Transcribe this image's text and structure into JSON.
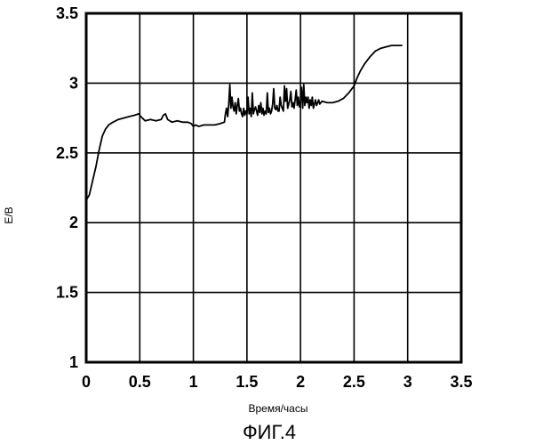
{
  "chart_data": {
    "type": "line",
    "xlabel": "Время/часы",
    "ylabel": "E/B",
    "figure_label": "ФИГ.4",
    "xlim": [
      0,
      3.5
    ],
    "ylim": [
      1,
      3.5
    ],
    "xticks": [
      0,
      0.5,
      1,
      1.5,
      2,
      2.5,
      3,
      3.5
    ],
    "xtick_labels": [
      "0",
      "0.5",
      "1",
      "1.5",
      "2",
      "2.5",
      "3",
      "3.5"
    ],
    "yticks": [
      1,
      1.5,
      2,
      2.5,
      3,
      3.5
    ],
    "ytick_labels": [
      "1",
      "1.5",
      "2",
      "2.5",
      "3",
      "3.5"
    ],
    "grid": true,
    "series": [
      {
        "x": [
          0,
          0.03,
          0.06,
          0.09,
          0.12,
          0.15,
          0.18,
          0.21,
          0.25,
          0.3,
          0.35,
          0.4,
          0.45,
          0.49,
          0.51,
          0.55,
          0.6,
          0.65,
          0.7,
          0.72,
          0.74,
          0.76,
          0.8,
          0.85,
          0.9,
          0.95,
          0.98,
          1.0,
          1.02,
          1.05,
          1.1,
          1.15,
          1.2,
          1.25,
          1.29,
          1.3,
          1.31,
          1.32,
          1.33,
          1.34,
          1.35,
          1.36,
          1.37,
          1.38,
          1.39,
          1.4,
          1.41,
          1.42,
          1.43,
          1.44,
          1.45,
          1.46,
          1.47,
          1.48,
          1.49,
          1.5,
          1.51,
          1.52,
          1.53,
          1.54,
          1.55,
          1.56,
          1.57,
          1.58,
          1.59,
          1.6,
          1.61,
          1.62,
          1.63,
          1.64,
          1.65,
          1.66,
          1.67,
          1.68,
          1.69,
          1.7,
          1.71,
          1.72,
          1.73,
          1.74,
          1.75,
          1.76,
          1.77,
          1.78,
          1.79,
          1.8,
          1.81,
          1.82,
          1.83,
          1.84,
          1.85,
          1.86,
          1.87,
          1.88,
          1.89,
          1.9,
          1.91,
          1.92,
          1.93,
          1.94,
          1.95,
          1.96,
          1.97,
          1.98,
          1.99,
          2.0,
          2.01,
          2.02,
          2.03,
          2.04,
          2.05,
          2.06,
          2.07,
          2.08,
          2.09,
          2.1,
          2.11,
          2.12,
          2.13,
          2.14,
          2.15,
          2.16,
          2.17,
          2.18,
          2.2,
          2.25,
          2.3,
          2.35,
          2.4,
          2.45,
          2.5,
          2.53,
          2.56,
          2.6,
          2.65,
          2.7,
          2.75,
          2.8,
          2.85,
          2.9,
          2.95
        ],
        "y": [
          2.16,
          2.2,
          2.3,
          2.4,
          2.52,
          2.62,
          2.67,
          2.7,
          2.72,
          2.74,
          2.75,
          2.76,
          2.77,
          2.78,
          2.76,
          2.73,
          2.74,
          2.73,
          2.74,
          2.77,
          2.78,
          2.74,
          2.72,
          2.73,
          2.72,
          2.72,
          2.71,
          2.69,
          2.7,
          2.69,
          2.7,
          2.7,
          2.7,
          2.71,
          2.72,
          2.78,
          2.82,
          2.76,
          2.85,
          2.99,
          2.82,
          2.9,
          2.83,
          2.8,
          2.86,
          2.78,
          2.84,
          2.89,
          2.8,
          2.82,
          2.78,
          2.76,
          2.82,
          2.77,
          2.8,
          2.78,
          2.9,
          2.78,
          2.82,
          2.76,
          2.93,
          2.78,
          2.81,
          2.83,
          2.8,
          2.77,
          2.84,
          2.79,
          2.86,
          2.78,
          2.82,
          2.77,
          2.8,
          2.78,
          2.93,
          2.79,
          2.82,
          2.78,
          2.8,
          2.85,
          2.96,
          2.82,
          2.81,
          2.84,
          2.8,
          2.8,
          2.9,
          2.84,
          2.82,
          2.8,
          2.98,
          2.87,
          2.96,
          2.82,
          2.85,
          2.88,
          2.94,
          2.83,
          2.86,
          2.82,
          2.88,
          2.95,
          2.84,
          2.9,
          2.83,
          2.86,
          2.97,
          2.82,
          2.99,
          2.84,
          2.9,
          2.86,
          2.9,
          2.82,
          2.88,
          2.84,
          2.9,
          2.82,
          2.85,
          2.88,
          2.84,
          2.86,
          2.88,
          2.85,
          2.87,
          2.86,
          2.86,
          2.87,
          2.89,
          2.93,
          2.98,
          3.04,
          3.09,
          3.14,
          3.19,
          3.23,
          3.25,
          3.26,
          3.27,
          3.27,
          3.27
        ]
      }
    ]
  }
}
